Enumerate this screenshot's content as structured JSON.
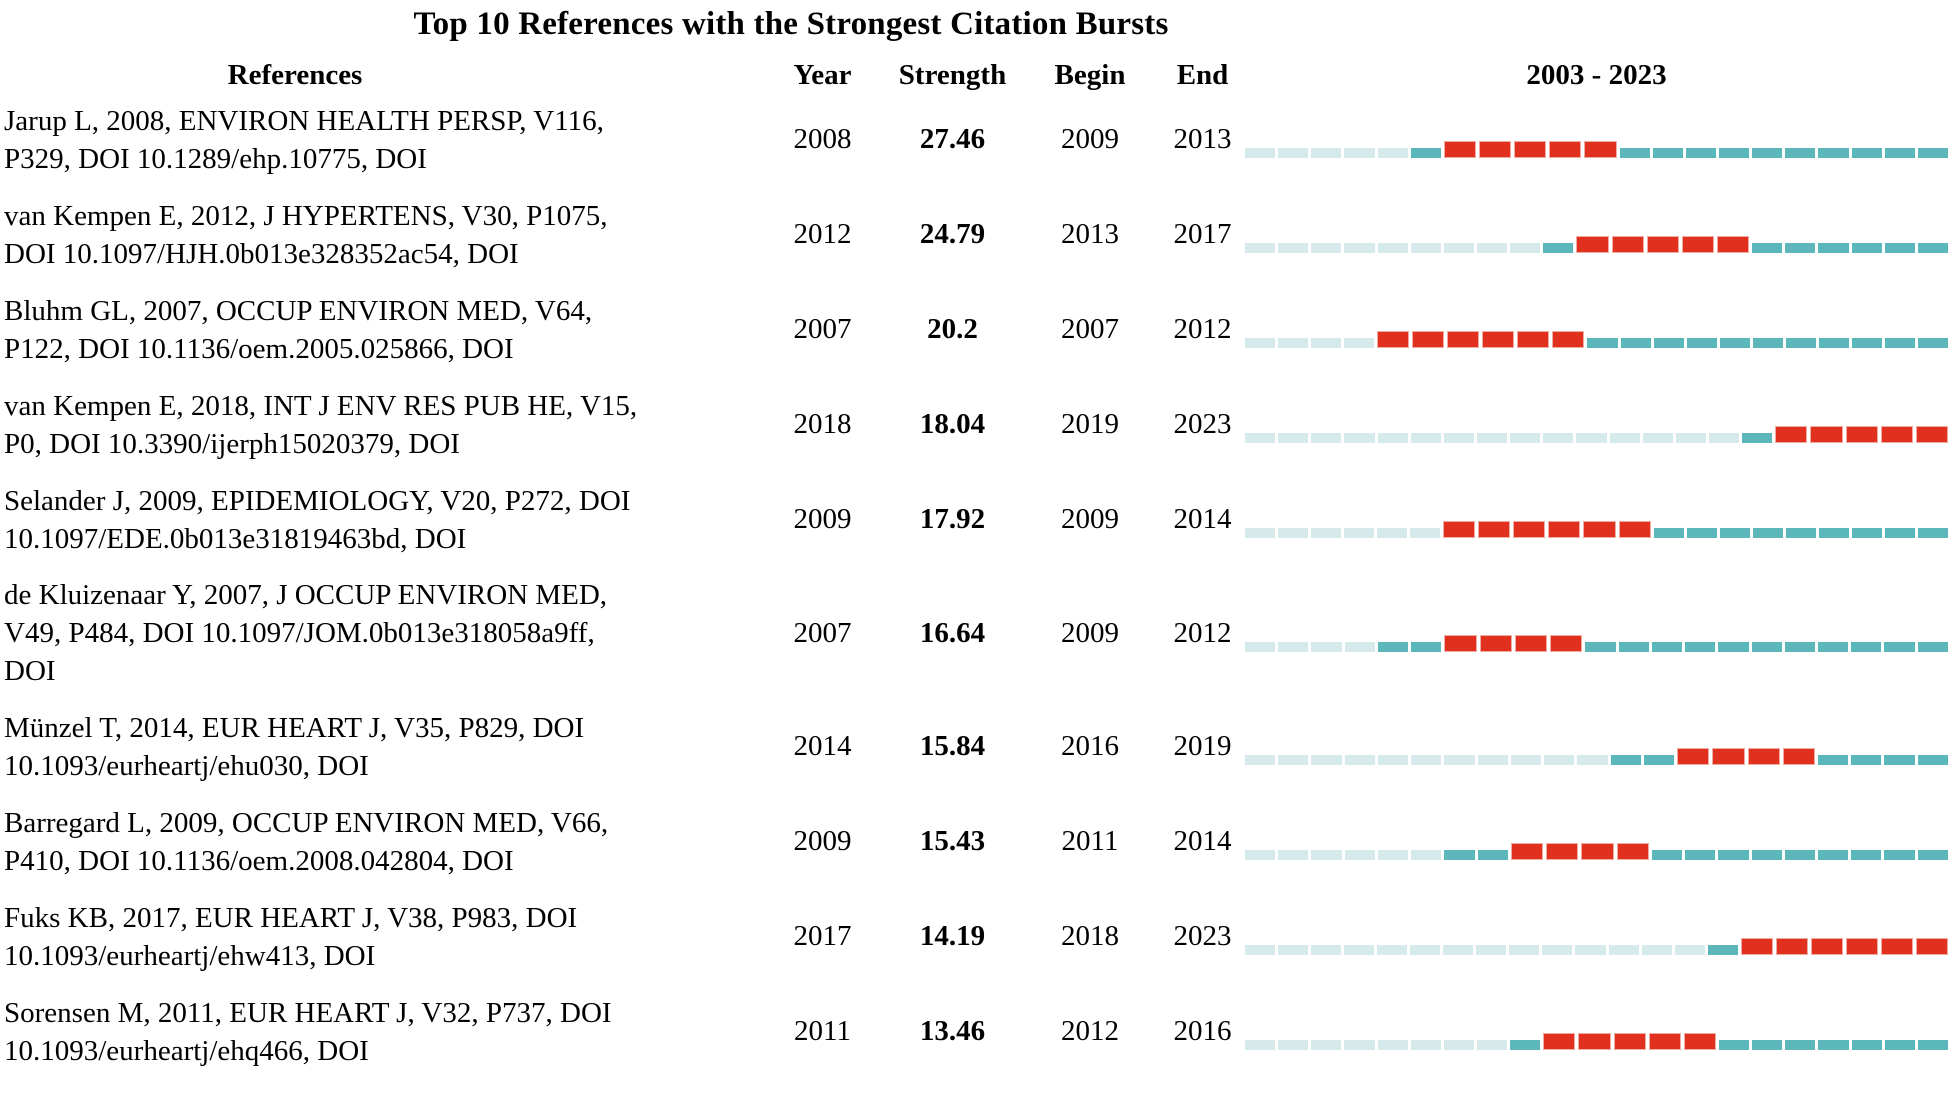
{
  "chart_data": {
    "type": "table",
    "title": "Top 10 References with the Strongest Citation Bursts",
    "columns": [
      "References",
      "Year",
      "Strength",
      "Begin",
      "End",
      "2003 - 2023"
    ],
    "x_range": [
      2003,
      2023
    ],
    "legend": {
      "pre_publication_color": "#d7eaeb",
      "active_color": "#5bb7ba",
      "burst_color": "#e2301f"
    },
    "rows": [
      {
        "reference": "Jarup L, 2008, ENVIRON HEALTH PERSP, V116,\nP329, DOI 10.1289/ehp.10775, DOI",
        "year": 2008,
        "strength": "27.46",
        "begin": 2009,
        "end": 2013
      },
      {
        "reference": "van Kempen E, 2012, J HYPERTENS, V30, P1075,\nDOI 10.1097/HJH.0b013e328352ac54, DOI",
        "year": 2012,
        "strength": "24.79",
        "begin": 2013,
        "end": 2017
      },
      {
        "reference": "Bluhm GL, 2007, OCCUP ENVIRON MED, V64,\nP122, DOI 10.1136/oem.2005.025866, DOI",
        "year": 2007,
        "strength": "20.2",
        "begin": 2007,
        "end": 2012
      },
      {
        "reference": "van Kempen E, 2018, INT J ENV RES PUB HE, V15,\nP0, DOI 10.3390/ijerph15020379, DOI",
        "year": 2018,
        "strength": "18.04",
        "begin": 2019,
        "end": 2023
      },
      {
        "reference": "Selander J, 2009, EPIDEMIOLOGY, V20, P272, DOI\n10.1097/EDE.0b013e31819463bd, DOI",
        "year": 2009,
        "strength": "17.92",
        "begin": 2009,
        "end": 2014
      },
      {
        "reference": "de Kluizenaar Y, 2007, J OCCUP ENVIRON MED,\nV49, P484, DOI 10.1097/JOM.0b013e318058a9ff,\nDOI",
        "year": 2007,
        "strength": "16.64",
        "begin": 2009,
        "end": 2012
      },
      {
        "reference": "Münzel T, 2014, EUR HEART J, V35, P829, DOI\n10.1093/eurheartj/ehu030, DOI",
        "year": 2014,
        "strength": "15.84",
        "begin": 2016,
        "end": 2019
      },
      {
        "reference": "Barregard L, 2009, OCCUP ENVIRON MED, V66,\nP410, DOI 10.1136/oem.2008.042804, DOI",
        "year": 2009,
        "strength": "15.43",
        "begin": 2011,
        "end": 2014
      },
      {
        "reference": "Fuks KB, 2017, EUR HEART J, V38, P983, DOI\n10.1093/eurheartj/ehw413, DOI",
        "year": 2017,
        "strength": "14.19",
        "begin": 2018,
        "end": 2023
      },
      {
        "reference": "Sorensen M, 2011, EUR HEART J, V32, P737, DOI\n10.1093/eurheartj/ehq466, DOI",
        "year": 2011,
        "strength": "13.46",
        "begin": 2012,
        "end": 2016
      }
    ]
  }
}
